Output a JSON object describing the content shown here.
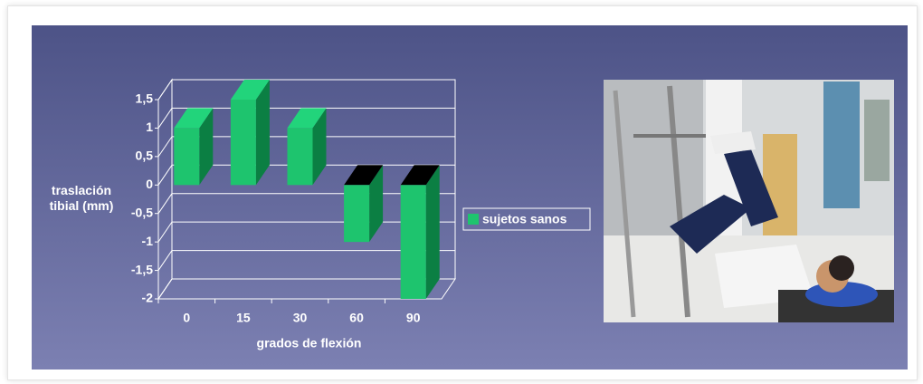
{
  "chart_data": {
    "type": "bar3d",
    "y_label": "traslación tibial (mm)",
    "x_label": "grados de flexión",
    "categories": [
      "0",
      "15",
      "30",
      "60",
      "90"
    ],
    "series": [
      {
        "name": "sujetos sanos",
        "color": "#1ec46e",
        "values": [
          1,
          1.5,
          1,
          -1,
          -2
        ]
      }
    ],
    "ylim": [
      -2,
      1.5
    ],
    "yticks": [
      {
        "value": -2,
        "label": "-2"
      },
      {
        "value": -1.5,
        "label": "-1,5"
      },
      {
        "value": -1,
        "label": "-1"
      },
      {
        "value": -0.5,
        "label": "-0,5"
      },
      0,
      {
        "value": 0.5,
        "label": "0,5"
      },
      1,
      {
        "value": 1.5,
        "label": "1,5"
      }
    ],
    "grid": true,
    "legend": "right"
  }
}
